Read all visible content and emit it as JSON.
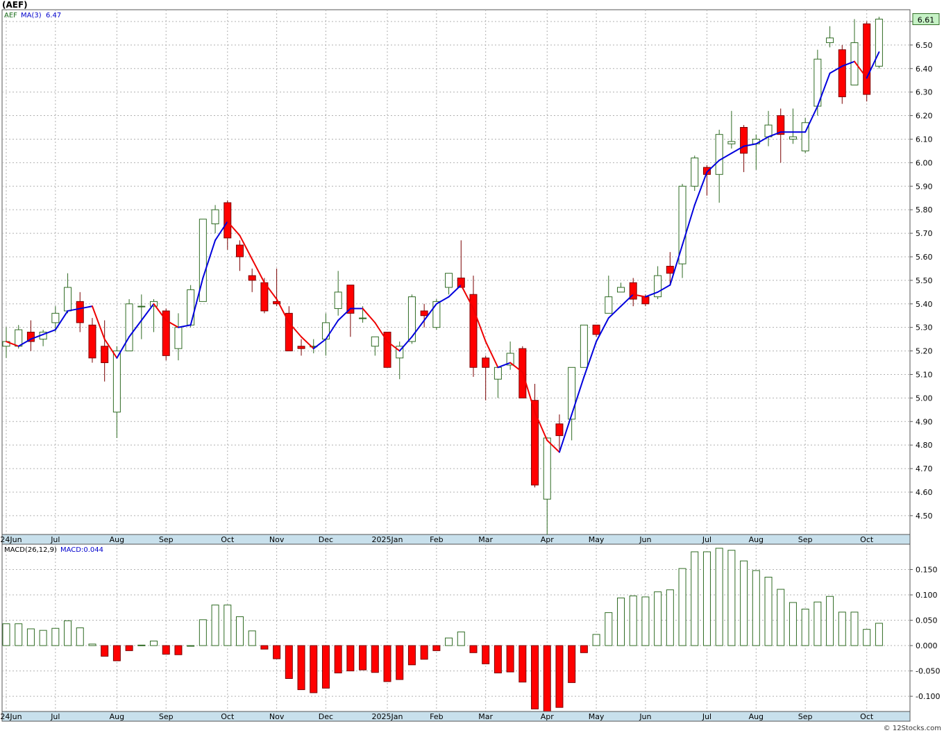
{
  "header": {
    "symbol_title": "(AEF)"
  },
  "footer": {
    "credit": "© 12Stocks.com"
  },
  "colors": {
    "up_candle_stroke": "#2f6b23",
    "down_candle_fill": "#ff0000",
    "ma_up": "#0000dd",
    "ma_down": "#ee0000",
    "grid": "#b0b0b0",
    "axis_band": "#c8e0ec"
  },
  "chart_data": [
    {
      "type": "candlestick",
      "panel": "price",
      "legend": {
        "ticker": "AEF",
        "ma_label": "MA(3)",
        "ma_value": "6.47"
      },
      "last_price_label": "6.61",
      "ylim": [
        4.42,
        6.65
      ],
      "y_ticks": [
        "4.50",
        "4.60",
        "4.70",
        "4.80",
        "4.90",
        "5.00",
        "5.10",
        "5.20",
        "5.30",
        "5.40",
        "5.50",
        "5.60",
        "5.70",
        "5.80",
        "5.90",
        "6.00",
        "6.10",
        "6.20",
        "6.30",
        "6.40",
        "6.50",
        "6.60"
      ],
      "x_ticks": [
        {
          "label": "2024Jun",
          "i": 0
        },
        {
          "label": "Jul",
          "i": 4
        },
        {
          "label": "Aug",
          "i": 9
        },
        {
          "label": "Sep",
          "i": 13
        },
        {
          "label": "Oct",
          "i": 18
        },
        {
          "label": "Nov",
          "i": 22
        },
        {
          "label": "Dec",
          "i": 26
        },
        {
          "label": "2025Jan",
          "i": 31
        },
        {
          "label": "Feb",
          "i": 35
        },
        {
          "label": "Mar",
          "i": 39
        },
        {
          "label": "Apr",
          "i": 44
        },
        {
          "label": "May",
          "i": 48
        },
        {
          "label": "Jun",
          "i": 52
        },
        {
          "label": "Jul",
          "i": 57
        },
        {
          "label": "Aug",
          "i": 61
        },
        {
          "label": "Sep",
          "i": 65
        },
        {
          "label": "Oct",
          "i": 70
        }
      ],
      "ohlc": [
        [
          5.22,
          5.3,
          5.17,
          5.24
        ],
        [
          5.22,
          5.31,
          5.21,
          5.29
        ],
        [
          5.28,
          5.33,
          5.2,
          5.24
        ],
        [
          5.25,
          5.29,
          5.22,
          5.28
        ],
        [
          5.32,
          5.39,
          5.28,
          5.36
        ],
        [
          5.37,
          5.53,
          5.36,
          5.47
        ],
        [
          5.41,
          5.45,
          5.28,
          5.32
        ],
        [
          5.31,
          5.34,
          5.15,
          5.17
        ],
        [
          5.22,
          5.33,
          5.07,
          5.15
        ],
        [
          4.94,
          5.22,
          4.83,
          5.2
        ],
        [
          5.2,
          5.42,
          5.2,
          5.4
        ],
        [
          5.39,
          5.44,
          5.25,
          5.39
        ],
        [
          5.39,
          5.42,
          5.28,
          5.41
        ],
        [
          5.37,
          5.38,
          5.16,
          5.18
        ],
        [
          5.21,
          5.36,
          5.16,
          5.3
        ],
        [
          5.31,
          5.48,
          5.3,
          5.46
        ],
        [
          5.41,
          5.76,
          5.41,
          5.76
        ],
        [
          5.74,
          5.82,
          5.7,
          5.8
        ],
        [
          5.83,
          5.84,
          5.63,
          5.68
        ],
        [
          5.65,
          5.67,
          5.54,
          5.6
        ],
        [
          5.52,
          5.55,
          5.45,
          5.5
        ],
        [
          5.49,
          5.51,
          5.36,
          5.37
        ],
        [
          5.41,
          5.55,
          5.39,
          5.4
        ],
        [
          5.36,
          5.39,
          5.2,
          5.2
        ],
        [
          5.22,
          5.25,
          5.18,
          5.21
        ],
        [
          5.22,
          5.25,
          5.19,
          5.22
        ],
        [
          5.25,
          5.36,
          5.18,
          5.32
        ],
        [
          5.38,
          5.54,
          5.35,
          5.45
        ],
        [
          5.48,
          5.48,
          5.26,
          5.36
        ],
        [
          5.34,
          5.39,
          5.32,
          5.34
        ],
        [
          5.22,
          5.26,
          5.18,
          5.26
        ],
        [
          5.28,
          5.28,
          5.13,
          5.13
        ],
        [
          5.17,
          5.24,
          5.08,
          5.22
        ],
        [
          5.24,
          5.44,
          5.23,
          5.43
        ],
        [
          5.37,
          5.4,
          5.3,
          5.35
        ],
        [
          5.3,
          5.42,
          5.29,
          5.41
        ],
        [
          5.47,
          5.53,
          5.44,
          5.53
        ],
        [
          5.51,
          5.67,
          5.47,
          5.47
        ],
        [
          5.44,
          5.52,
          5.09,
          5.13
        ],
        [
          5.17,
          5.18,
          4.99,
          5.13
        ],
        [
          5.08,
          5.13,
          5.0,
          5.13
        ],
        [
          5.14,
          5.24,
          5.12,
          5.19
        ],
        [
          5.21,
          5.22,
          5.0,
          5.0
        ],
        [
          4.99,
          5.06,
          4.62,
          4.63
        ],
        [
          4.57,
          4.83,
          4.42,
          4.83
        ],
        [
          4.89,
          4.93,
          4.78,
          4.84
        ],
        [
          4.91,
          5.13,
          4.82,
          5.13
        ],
        [
          5.13,
          5.31,
          5.13,
          5.31
        ],
        [
          5.31,
          5.31,
          5.26,
          5.27
        ],
        [
          5.36,
          5.52,
          5.36,
          5.43
        ],
        [
          5.45,
          5.49,
          5.45,
          5.47
        ],
        [
          5.49,
          5.51,
          5.39,
          5.42
        ],
        [
          5.43,
          5.44,
          5.39,
          5.4
        ],
        [
          5.43,
          5.56,
          5.42,
          5.52
        ],
        [
          5.56,
          5.62,
          5.48,
          5.53
        ],
        [
          5.57,
          5.91,
          5.51,
          5.9
        ],
        [
          5.9,
          6.03,
          5.88,
          6.02
        ],
        [
          5.98,
          5.99,
          5.86,
          5.95
        ],
        [
          5.95,
          6.14,
          5.83,
          6.12
        ],
        [
          6.08,
          6.22,
          6.06,
          6.09
        ],
        [
          6.15,
          6.16,
          5.96,
          6.04
        ],
        [
          6.08,
          6.12,
          5.97,
          6.1
        ],
        [
          6.11,
          6.22,
          6.07,
          6.16
        ],
        [
          6.2,
          6.23,
          6.0,
          6.12
        ],
        [
          6.1,
          6.23,
          6.08,
          6.11
        ],
        [
          6.05,
          6.19,
          6.04,
          6.17
        ],
        [
          6.24,
          6.48,
          6.2,
          6.44
        ],
        [
          6.51,
          6.58,
          6.49,
          6.53
        ],
        [
          6.48,
          6.5,
          6.25,
          6.28
        ],
        [
          6.33,
          6.61,
          6.33,
          6.51
        ],
        [
          6.59,
          6.6,
          6.26,
          6.29
        ],
        [
          6.41,
          6.62,
          6.4,
          6.61
        ]
      ],
      "ma3": [
        5.24,
        5.22,
        5.25,
        5.27,
        5.29,
        5.37,
        5.38,
        5.39,
        5.25,
        5.17,
        5.26,
        5.33,
        5.4,
        5.33,
        5.3,
        5.31,
        5.51,
        5.67,
        5.75,
        5.69,
        5.59,
        5.49,
        5.42,
        5.32,
        5.26,
        5.21,
        5.25,
        5.33,
        5.38,
        5.38,
        5.32,
        5.24,
        5.2,
        5.26,
        5.33,
        5.4,
        5.43,
        5.48,
        5.38,
        5.24,
        5.13,
        5.15,
        5.11,
        4.94,
        4.82,
        4.77,
        4.93,
        5.09,
        5.24,
        5.34,
        5.39,
        5.44,
        5.43,
        5.45,
        5.48,
        5.65,
        5.82,
        5.96,
        6.01,
        6.04,
        6.07,
        6.08,
        6.11,
        6.13,
        6.13,
        6.13,
        6.24,
        6.38,
        6.41,
        6.43,
        6.36,
        6.47
      ],
      "ma_trend": [
        0,
        0,
        1,
        1,
        1,
        1,
        1,
        1,
        0,
        0,
        1,
        1,
        1,
        0,
        0,
        1,
        1,
        1,
        1,
        0,
        0,
        0,
        0,
        0,
        0,
        0,
        1,
        1,
        1,
        1,
        0,
        0,
        0,
        1,
        1,
        1,
        1,
        1,
        0,
        0,
        0,
        1,
        0,
        0,
        0,
        0,
        1,
        1,
        1,
        1,
        1,
        1,
        0,
        1,
        1,
        1,
        1,
        1,
        1,
        1,
        1,
        1,
        1,
        1,
        1,
        1,
        1,
        1,
        1,
        1,
        0,
        1
      ]
    },
    {
      "type": "bar",
      "panel": "macd",
      "legend": {
        "name": "MACD(26,12,9)",
        "value_label": "MACD:0.044"
      },
      "ylim": [
        -0.13,
        0.2
      ],
      "y_ticks": [
        "-0.100",
        "-0.050",
        "0.000",
        "0.050",
        "0.100",
        "0.150"
      ],
      "x_ticks": [
        {
          "label": "2024Jun",
          "i": 0
        },
        {
          "label": "Jul",
          "i": 4
        },
        {
          "label": "Aug",
          "i": 9
        },
        {
          "label": "Sep",
          "i": 13
        },
        {
          "label": "Oct",
          "i": 18
        },
        {
          "label": "Nov",
          "i": 22
        },
        {
          "label": "Dec",
          "i": 26
        },
        {
          "label": "2025Jan",
          "i": 31
        },
        {
          "label": "Feb",
          "i": 35
        },
        {
          "label": "Mar",
          "i": 39
        },
        {
          "label": "Apr",
          "i": 44
        },
        {
          "label": "May",
          "i": 48
        },
        {
          "label": "Jun",
          "i": 52
        },
        {
          "label": "Jul",
          "i": 57
        },
        {
          "label": "Aug",
          "i": 61
        },
        {
          "label": "Sep",
          "i": 65
        },
        {
          "label": "Oct",
          "i": 70
        }
      ],
      "values": [
        0.043,
        0.043,
        0.033,
        0.03,
        0.034,
        0.049,
        0.035,
        0.003,
        -0.021,
        -0.03,
        -0.01,
        0.001,
        0.009,
        -0.017,
        -0.018,
        0.0,
        0.051,
        0.08,
        0.08,
        0.057,
        0.029,
        -0.007,
        -0.026,
        -0.065,
        -0.087,
        -0.093,
        -0.084,
        -0.054,
        -0.05,
        -0.048,
        -0.053,
        -0.071,
        -0.067,
        -0.038,
        -0.027,
        -0.01,
        0.015,
        0.027,
        -0.014,
        -0.036,
        -0.054,
        -0.052,
        -0.072,
        -0.125,
        -0.13,
        -0.122,
        -0.073,
        -0.014,
        0.022,
        0.065,
        0.094,
        0.098,
        0.096,
        0.106,
        0.11,
        0.152,
        0.185,
        0.185,
        0.192,
        0.188,
        0.167,
        0.148,
        0.135,
        0.111,
        0.085,
        0.072,
        0.086,
        0.097,
        0.066,
        0.066,
        0.032,
        0.044
      ]
    }
  ]
}
